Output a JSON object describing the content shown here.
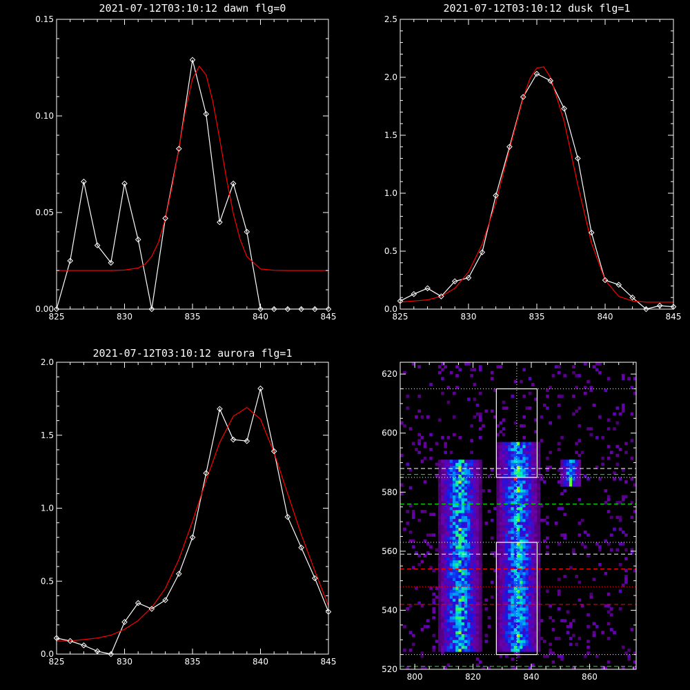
{
  "chart_data": [
    {
      "type": "line",
      "title": "2021-07-12T03:10:12 dawn flg=0",
      "xlim": [
        825,
        845
      ],
      "ylim": [
        0,
        0.15
      ],
      "xticks": [
        825,
        830,
        835,
        840,
        845
      ],
      "yticks": [
        0.0,
        0.05,
        0.1,
        0.15
      ],
      "ytick_labels": [
        "0.00",
        "0.05",
        "0.10",
        "0.15"
      ],
      "series": [
        {
          "kind": "data",
          "color": "#ffffff",
          "marker": "diamond",
          "x": [
            825,
            826,
            827,
            828,
            829,
            830,
            831,
            832,
            833,
            834,
            835,
            836,
            837,
            838,
            839,
            840,
            841,
            842,
            843,
            844,
            845
          ],
          "y": [
            0.0,
            0.025,
            0.066,
            0.033,
            0.024,
            0.065,
            0.036,
            0.0,
            0.047,
            0.083,
            0.129,
            0.101,
            0.045,
            0.065,
            0.04,
            0.0,
            0.0,
            0.0,
            0.0,
            0.0,
            0.0
          ]
        },
        {
          "kind": "fit",
          "color": "#ff0000",
          "x": [
            825,
            826,
            827,
            828,
            829,
            830,
            831,
            831.5,
            832,
            832.5,
            833,
            833.5,
            834,
            834.5,
            835,
            835.5,
            836,
            836.5,
            837,
            837.5,
            838,
            838.5,
            839,
            840,
            841,
            842,
            843,
            844,
            845
          ],
          "y": [
            0.02,
            0.02,
            0.02,
            0.02,
            0.02,
            0.0202,
            0.0213,
            0.0232,
            0.0273,
            0.0348,
            0.0468,
            0.0635,
            0.0835,
            0.1036,
            0.1192,
            0.1257,
            0.1212,
            0.1074,
            0.0879,
            0.0674,
            0.0495,
            0.036,
            0.0272,
            0.0208,
            0.0201,
            0.02,
            0.02,
            0.02,
            0.02
          ]
        }
      ]
    },
    {
      "type": "line",
      "title": "2021-07-12T03:10:12 dusk flg=1",
      "xlim": [
        825,
        845
      ],
      "ylim": [
        0,
        2.5
      ],
      "xticks": [
        825,
        830,
        835,
        840,
        845
      ],
      "yticks": [
        0.0,
        0.5,
        1.0,
        1.5,
        2.0,
        2.5
      ],
      "ytick_labels": [
        "0.0",
        "0.5",
        "1.0",
        "1.5",
        "2.0",
        "2.5"
      ],
      "series": [
        {
          "kind": "data",
          "color": "#ffffff",
          "marker": "diamond",
          "x": [
            825,
            826,
            827,
            828,
            829,
            830,
            831,
            832,
            833,
            834,
            835,
            836,
            837,
            838,
            839,
            840,
            841,
            842,
            843,
            844,
            845
          ],
          "y": [
            0.07,
            0.13,
            0.18,
            0.11,
            0.24,
            0.27,
            0.49,
            0.98,
            1.4,
            1.83,
            2.03,
            1.97,
            1.73,
            1.3,
            0.66,
            0.25,
            0.21,
            0.1,
            0.0,
            0.03,
            0.02
          ]
        },
        {
          "kind": "fit",
          "color": "#ff0000",
          "x": [
            825,
            826,
            827,
            828,
            829,
            830,
            831,
            832,
            833,
            834,
            834.5,
            835,
            835.5,
            836,
            837,
            838,
            839,
            840,
            841,
            842,
            843,
            844,
            845
          ],
          "y": [
            0.06,
            0.07,
            0.08,
            0.11,
            0.18,
            0.32,
            0.56,
            0.92,
            1.38,
            1.82,
            1.99,
            2.08,
            2.09,
            2.0,
            1.62,
            1.07,
            0.57,
            0.25,
            0.11,
            0.07,
            0.06,
            0.06,
            0.06
          ]
        }
      ]
    },
    {
      "type": "line",
      "title": "2021-07-12T03:10:12 aurora flg=1",
      "xlim": [
        825,
        845
      ],
      "ylim": [
        0,
        2.0
      ],
      "xticks": [
        825,
        830,
        835,
        840,
        845
      ],
      "yticks": [
        0.0,
        0.5,
        1.0,
        1.5,
        2.0
      ],
      "ytick_labels": [
        "0.0",
        "0.5",
        "1.0",
        "1.5",
        "2.0"
      ],
      "series": [
        {
          "kind": "data",
          "color": "#ffffff",
          "marker": "diamond",
          "x": [
            825,
            826,
            827,
            828,
            829,
            830,
            831,
            832,
            833,
            834,
            835,
            836,
            837,
            838,
            839,
            840,
            841,
            842,
            843,
            844,
            845
          ],
          "y": [
            0.11,
            0.09,
            0.06,
            0.02,
            0.0,
            0.22,
            0.35,
            0.31,
            0.37,
            0.55,
            0.8,
            1.24,
            1.68,
            1.47,
            1.46,
            1.82,
            1.39,
            0.94,
            0.73,
            0.52,
            0.29
          ]
        },
        {
          "kind": "fit",
          "color": "#ff0000",
          "x": [
            825,
            826,
            827,
            828,
            829,
            830,
            831,
            832,
            833,
            834,
            835,
            836,
            837,
            838,
            839,
            840,
            841,
            842,
            843,
            844,
            845
          ],
          "y": [
            0.09,
            0.09,
            0.1,
            0.11,
            0.13,
            0.17,
            0.23,
            0.32,
            0.45,
            0.65,
            0.91,
            1.19,
            1.45,
            1.63,
            1.69,
            1.61,
            1.38,
            1.1,
            0.82,
            0.57,
            0.33
          ]
        }
      ]
    },
    {
      "type": "heatmap",
      "title": "",
      "xlim": [
        795,
        876
      ],
      "ylim": [
        520,
        624
      ],
      "xticks": [
        800,
        820,
        840,
        860
      ],
      "yticks": [
        520,
        540,
        560,
        580,
        600,
        620
      ],
      "colormap": "rainbow",
      "bright_columns": [
        {
          "x_min": 808,
          "x_max": 822,
          "y_min": 526,
          "y_max": 590
        },
        {
          "x_min": 828,
          "x_max": 842,
          "y_min": 526,
          "y_max": 596
        },
        {
          "x_min": 850,
          "x_max": 856,
          "y_min": 582,
          "y_max": 590
        }
      ],
      "peak": {
        "x": 834,
        "y": 584
      },
      "boxes": [
        {
          "x_min": 828,
          "x_max": 842,
          "y_min": 585,
          "y_max": 615,
          "color": "#ffffff"
        },
        {
          "x_min": 828,
          "x_max": 842,
          "y_min": 525,
          "y_max": 563,
          "color": "#ffffff"
        }
      ],
      "vline": {
        "x": 835,
        "color": "#ffffff",
        "style": "dotted"
      },
      "hlines": [
        {
          "y": 615,
          "color": "#ffffff",
          "style": "dotted"
        },
        {
          "y": 588,
          "color": "#ffffff",
          "style": "dashed"
        },
        {
          "y": 586,
          "color": "#00ff00",
          "style": "dashed"
        },
        {
          "y": 585,
          "color": "#ffffff",
          "style": "dotted"
        },
        {
          "y": 576,
          "color": "#00ff00",
          "style": "dashed"
        },
        {
          "y": 563,
          "color": "#ffffff",
          "style": "dotted"
        },
        {
          "y": 559,
          "color": "#ffffff",
          "style": "dashed"
        },
        {
          "y": 554,
          "color": "#ff0000",
          "style": "dashed"
        },
        {
          "y": 548,
          "color": "#ff0000",
          "style": "dotted"
        },
        {
          "y": 542,
          "color": "#ff0000",
          "style": "dashed"
        },
        {
          "y": 525,
          "color": "#ffffff",
          "style": "dotted"
        },
        {
          "y": 521,
          "color": "#00ff00",
          "style": "dashed"
        }
      ]
    }
  ]
}
